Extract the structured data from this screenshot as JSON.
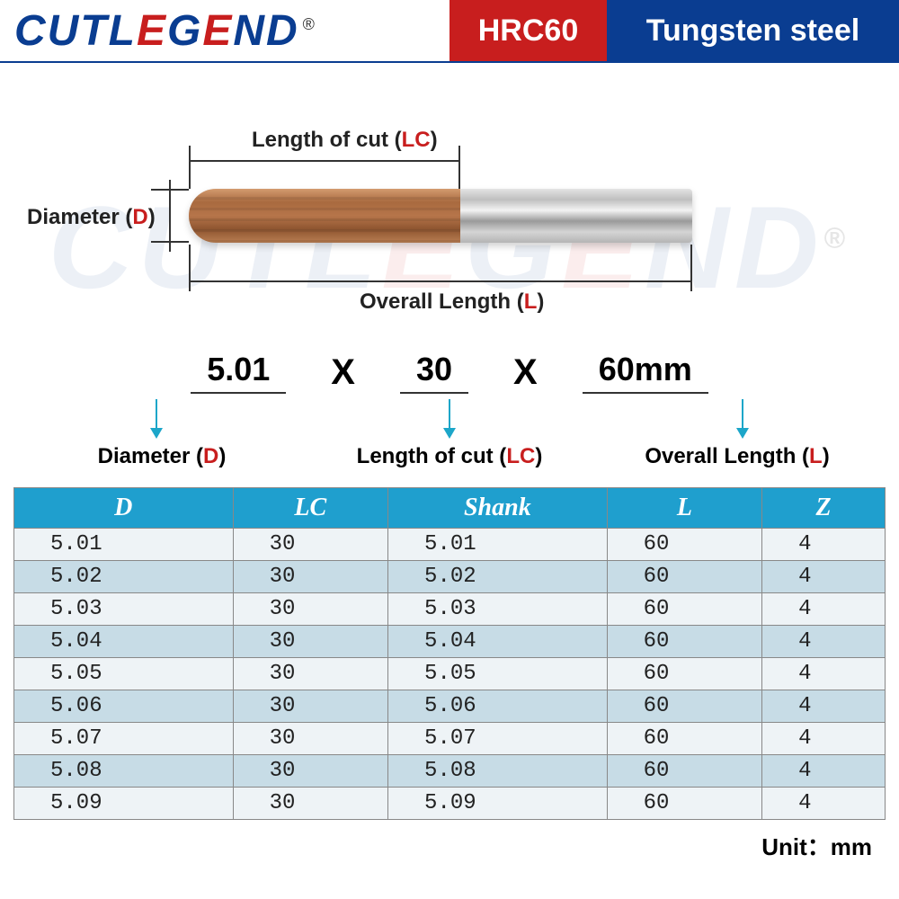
{
  "brand": {
    "name": "CUTLEGEND",
    "reg": "®",
    "logo_color": "#0a3d91",
    "accent_color": "#c81e1e"
  },
  "header": {
    "hrc_label": "HRC60",
    "material_label": "Tungsten steel",
    "hrc_bg": "#c81e1e",
    "mat_bg": "#0a3d91"
  },
  "diagram": {
    "lc_label_pre": "Length of cut (",
    "lc_label_code": "LC",
    "lc_label_post": ")",
    "d_label_pre": "Diameter (",
    "d_label_code": "D",
    "d_label_post": ")",
    "l_label_pre": "Overall Length (",
    "l_label_code": "L",
    "l_label_post": ")"
  },
  "dimensions": {
    "d_value": "5.01",
    "lc_value": "30",
    "l_value": "60mm",
    "separator": "X",
    "arrow_color": "#1ca6c9",
    "d_label_pre": "Diameter (",
    "d_label_code": "D",
    "d_label_post": ")",
    "lc_label_pre": "Length of cut (",
    "lc_label_code": "LC",
    "lc_label_post": ")",
    "l_label_pre": "Overall Length (",
    "l_label_code": "L",
    "l_label_post": ")"
  },
  "table": {
    "header_bg": "#1f9fce",
    "row_even_bg": "#c7dce6",
    "row_odd_bg": "#eef3f6",
    "border_color": "#888888",
    "font_family_header": "Times New Roman",
    "font_family_body": "Courier New",
    "columns": [
      "D",
      "LC",
      "Shank",
      "L",
      "Z"
    ],
    "rows": [
      [
        "5.01",
        "30",
        "5.01",
        "60",
        "4"
      ],
      [
        "5.02",
        "30",
        "5.02",
        "60",
        "4"
      ],
      [
        "5.03",
        "30",
        "5.03",
        "60",
        "4"
      ],
      [
        "5.04",
        "30",
        "5.04",
        "60",
        "4"
      ],
      [
        "5.05",
        "30",
        "5.05",
        "60",
        "4"
      ],
      [
        "5.06",
        "30",
        "5.06",
        "60",
        "4"
      ],
      [
        "5.07",
        "30",
        "5.07",
        "60",
        "4"
      ],
      [
        "5.08",
        "30",
        "5.08",
        "60",
        "4"
      ],
      [
        "5.09",
        "30",
        "5.09",
        "60",
        "4"
      ]
    ],
    "unit_label": "Unit：mm"
  }
}
